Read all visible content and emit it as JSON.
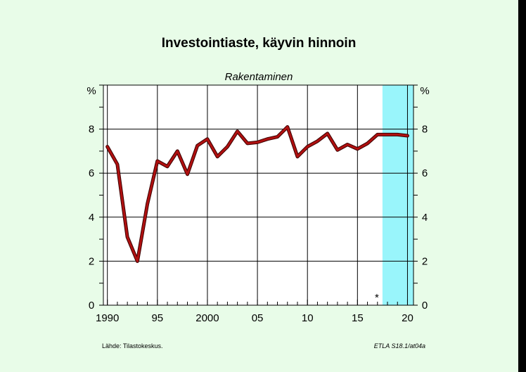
{
  "chart_data": {
    "type": "line",
    "title": "Investointiaste, käyvin hinnoin",
    "subtitle": "Rakentaminen",
    "ylabel_left": "%",
    "ylabel_right": "%",
    "xlim": [
      1989.6,
      2020.6
    ],
    "ylim": [
      0,
      10
    ],
    "x_ticks": [
      {
        "x": 1990,
        "label": "1990"
      },
      {
        "x": 1995,
        "label": "95"
      },
      {
        "x": 2000,
        "label": "2000"
      },
      {
        "x": 2005,
        "label": "05"
      },
      {
        "x": 2010,
        "label": "10"
      },
      {
        "x": 2015,
        "label": "15"
      },
      {
        "x": 2020,
        "label": "20"
      }
    ],
    "y_ticks": [
      {
        "y": 0,
        "label": "0"
      },
      {
        "y": 2,
        "label": "2"
      },
      {
        "y": 4,
        "label": "4"
      },
      {
        "y": 6,
        "label": "6"
      },
      {
        "y": 8,
        "label": "8"
      }
    ],
    "forecast_start": 2017.5,
    "forecast_marker": "*",
    "forecast_color": "#99f5fb",
    "line_color": "#b01010",
    "grid": true,
    "series": [
      {
        "x": [
          1990,
          1991,
          1992,
          1993,
          1994,
          1995,
          1996,
          1997,
          1998,
          1999,
          2000,
          2001,
          2002,
          2003,
          2004,
          2005,
          2006,
          2007,
          2008,
          2009,
          2010,
          2011,
          2012,
          2013,
          2014,
          2015,
          2016,
          2017,
          2018,
          2019,
          2020
        ],
        "values": [
          7.2,
          6.4,
          3.1,
          2.0,
          4.6,
          6.55,
          6.3,
          7.0,
          5.95,
          7.25,
          7.55,
          6.75,
          7.2,
          7.9,
          7.35,
          7.4,
          7.55,
          7.65,
          8.1,
          6.75,
          7.2,
          7.45,
          7.8,
          7.05,
          7.3,
          7.1,
          7.35,
          7.75,
          7.75,
          7.75,
          7.7
        ]
      }
    ]
  },
  "footer": {
    "source": "Lähde:   Tilastokeskus.",
    "code": "ETLA S18.1/at04a"
  }
}
